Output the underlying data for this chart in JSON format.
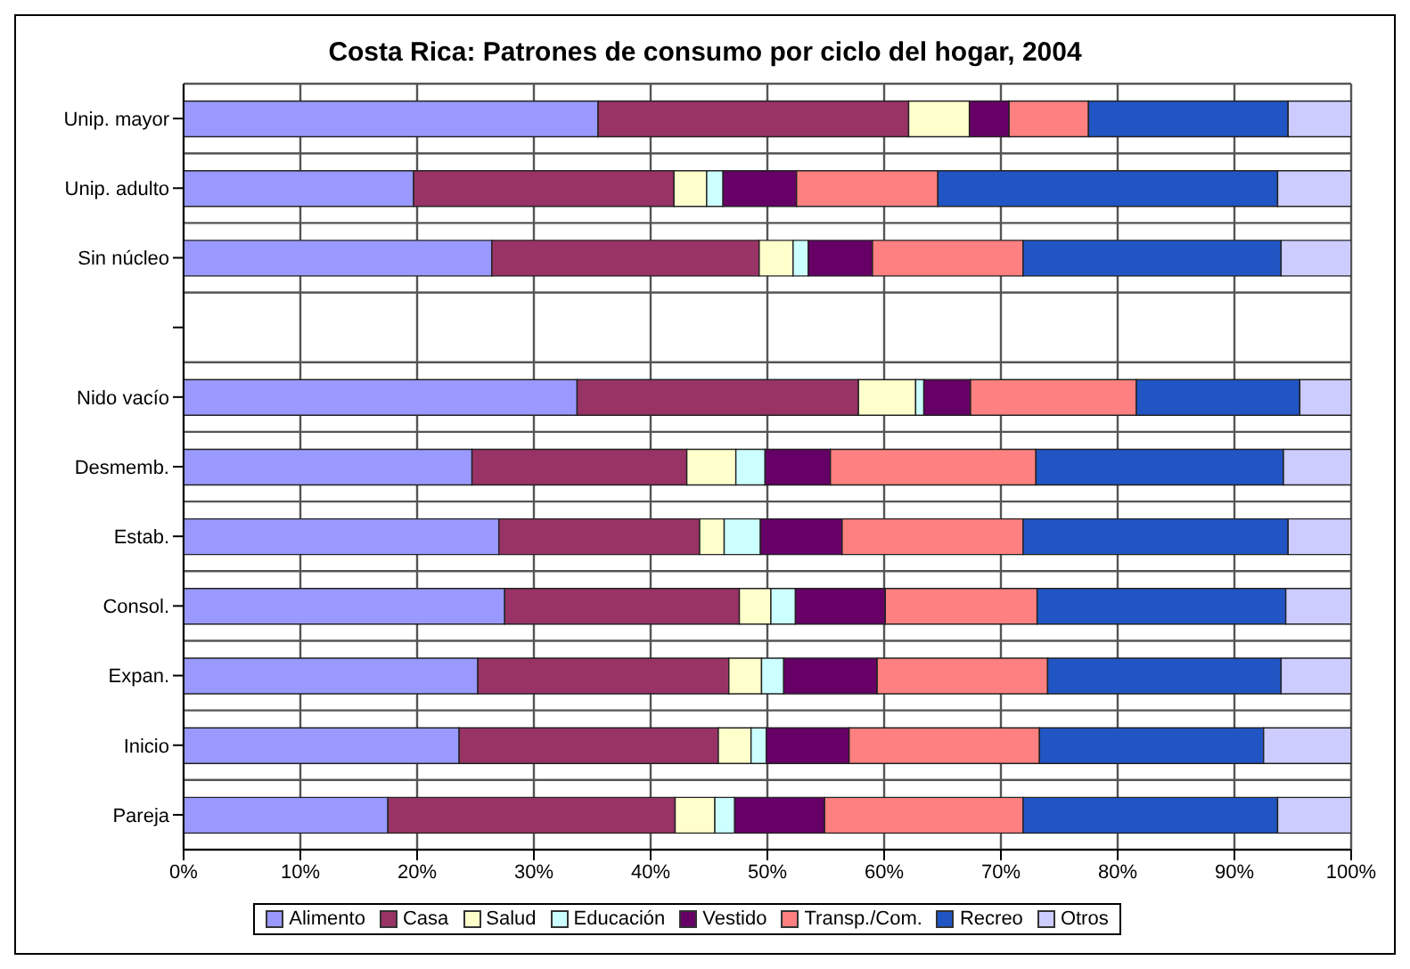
{
  "chart_data": {
    "type": "bar",
    "orientation": "horizontal",
    "stacked": true,
    "title": "Costa Rica: Patrones de consumo por ciclo del hogar, 2004",
    "categories": [
      "Unip. mayor",
      "Unip. adulto",
      "Sin núcleo",
      null,
      "Nido vacío",
      "Desmemb.",
      "Estab.",
      "Consol.",
      "Expan.",
      "Inicio",
      "Pareja"
    ],
    "series": [
      {
        "name": "Alimento",
        "color": "#9999ff",
        "values": [
          35.5,
          19.7,
          26.4,
          null,
          33.7,
          24.7,
          27.0,
          27.5,
          25.2,
          23.6,
          17.5
        ]
      },
      {
        "name": "Casa",
        "color": "#993366",
        "values": [
          26.6,
          22.3,
          22.9,
          null,
          24.1,
          18.4,
          17.2,
          20.1,
          21.5,
          22.2,
          24.6
        ]
      },
      {
        "name": "Salud",
        "color": "#ffffcc",
        "values": [
          5.2,
          2.8,
          2.9,
          null,
          4.9,
          4.2,
          2.1,
          2.7,
          2.8,
          2.8,
          3.4
        ]
      },
      {
        "name": "Educación",
        "color": "#ccffff",
        "values": [
          0,
          1.4,
          1.3,
          null,
          0.7,
          2.5,
          3.1,
          2.1,
          1.9,
          1.3,
          1.7
        ]
      },
      {
        "name": "Vestido",
        "color": "#660066",
        "values": [
          3.4,
          6.3,
          5.5,
          null,
          4.0,
          5.6,
          7.0,
          7.7,
          8.0,
          7.1,
          7.7
        ]
      },
      {
        "name": "Transp./Com.",
        "color": "#ff8080",
        "values": [
          6.8,
          12.1,
          12.9,
          null,
          14.2,
          17.6,
          15.5,
          13.0,
          14.6,
          16.3,
          17.0
        ]
      },
      {
        "name": "Recreo",
        "color": "#2255c4",
        "values": [
          17.1,
          29.1,
          22.1,
          null,
          14.0,
          21.2,
          22.7,
          21.3,
          20.0,
          19.2,
          21.8
        ]
      },
      {
        "name": "Otros",
        "color": "#ccccff",
        "values": [
          5.4,
          6.3,
          6.0,
          null,
          4.4,
          5.8,
          5.4,
          5.6,
          6.0,
          7.5,
          6.3
        ]
      }
    ],
    "xlim": [
      0,
      100
    ],
    "xticks": [
      {
        "value": 0,
        "label": "0%"
      },
      {
        "value": 10,
        "label": "10%"
      },
      {
        "value": 20,
        "label": "20%"
      },
      {
        "value": 30,
        "label": "30%"
      },
      {
        "value": 40,
        "label": "40%"
      },
      {
        "value": 50,
        "label": "50%"
      },
      {
        "value": 60,
        "label": "60%"
      },
      {
        "value": 70,
        "label": "70%"
      },
      {
        "value": 80,
        "label": "80%"
      },
      {
        "value": 90,
        "label": "90%"
      },
      {
        "value": 100,
        "label": "100%"
      }
    ],
    "grid": true,
    "legend": "bottom"
  }
}
